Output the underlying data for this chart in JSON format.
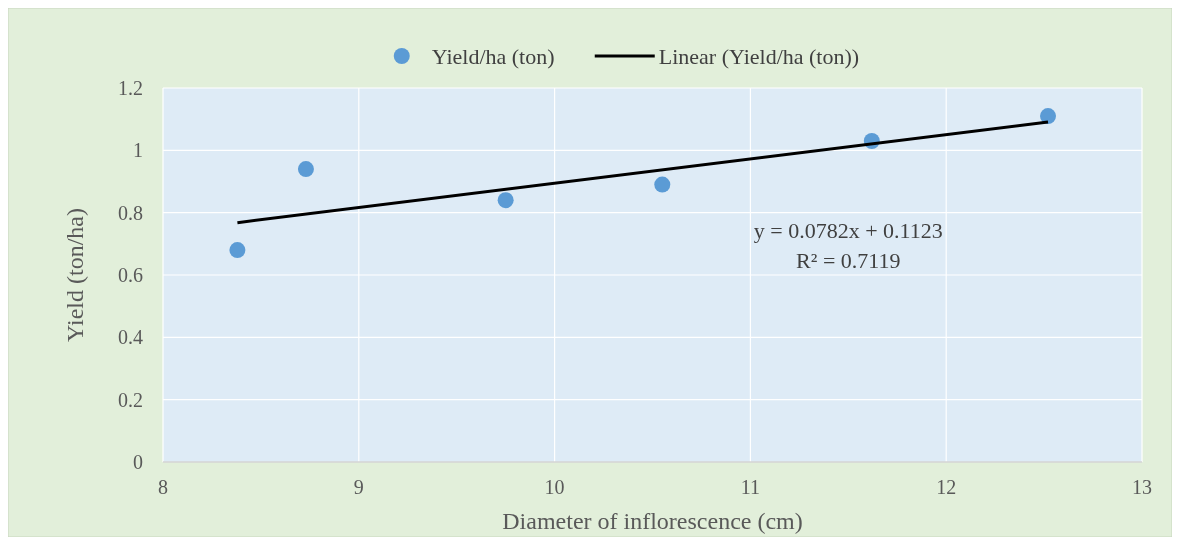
{
  "chart_data": {
    "type": "scatter",
    "xlabel": "Diameter of inflorescence (cm)",
    "ylabel": "Yield (ton/ha)",
    "xlim": [
      8,
      13
    ],
    "xticks": [
      8,
      9,
      10,
      11,
      12,
      13
    ],
    "ylim": [
      0,
      1.2
    ],
    "yticks": [
      0,
      0.2,
      0.4,
      0.6,
      0.8,
      1,
      1.2
    ],
    "grid": true,
    "legend": "top",
    "series": [
      {
        "name": "Yield/ha (ton)",
        "type": "scatter",
        "marker": "circle",
        "color": "#5b9bd5",
        "x": [
          8.38,
          8.73,
          9.75,
          10.55,
          11.62,
          12.52
        ],
        "values": [
          0.68,
          0.94,
          0.84,
          0.89,
          1.03,
          1.11
        ]
      },
      {
        "name": "Linear (Yield/ha (ton))",
        "type": "line",
        "marker": "none",
        "line_style": "solid",
        "color": "#000000",
        "x": [
          8.38,
          12.52
        ],
        "values": [
          0.768,
          1.091
        ]
      }
    ],
    "annotations": [
      "y = 0.0782x + 0.1123",
      "R² = 0.7119"
    ]
  }
}
